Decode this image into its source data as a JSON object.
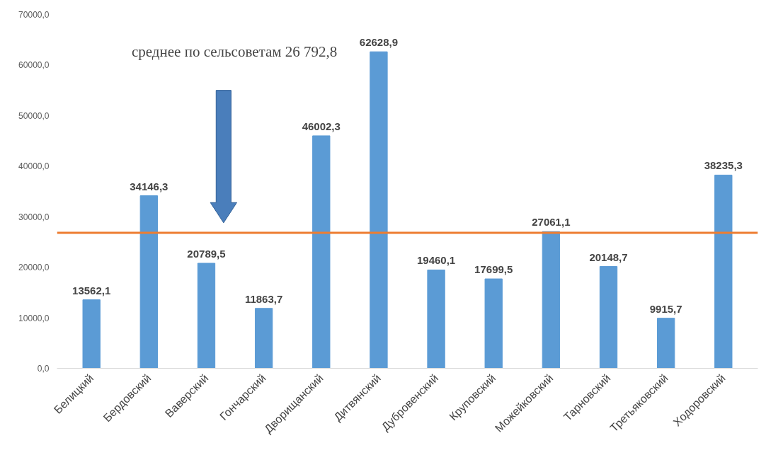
{
  "chart_data": {
    "type": "bar",
    "categories": [
      "Белицкий",
      "Бердовский",
      "Ваверский",
      "Гончарский",
      "Дворищанский",
      "Дитвянский",
      "Дубровенский",
      "Круповский",
      "Можейковский",
      "Тарновский",
      "Третьяковский",
      "Ходоровский"
    ],
    "values": [
      13562.1,
      34146.3,
      20789.5,
      11863.7,
      46002.3,
      62628.9,
      19460.1,
      17699.5,
      27061.1,
      20148.7,
      9915.7,
      38235.3
    ],
    "value_labels": [
      "13562,1",
      "34146,3",
      "20789,5",
      "11863,7",
      "46002,3",
      "62628,9",
      "19460,1",
      "17699,5",
      "27061,1",
      "20148,7",
      "9915,7",
      "38235,3"
    ],
    "color": "#5b9bd5",
    "ylim": [
      0,
      70000
    ],
    "yticks": [
      {
        "value": 0,
        "label": "0,0"
      },
      {
        "value": 10000,
        "label": "10000,0"
      },
      {
        "value": 20000,
        "label": "20000,0"
      },
      {
        "value": 30000,
        "label": "30000,0"
      },
      {
        "value": 40000,
        "label": "40000,0"
      },
      {
        "value": 50000,
        "label": "50000,0"
      },
      {
        "value": 60000,
        "label": "60000,0"
      },
      {
        "value": 70000,
        "label": "70000,0"
      }
    ],
    "ref_lines": [
      {
        "axis": "y",
        "value": 26792.8,
        "color": "#ed7d31"
      }
    ],
    "annotations": [
      "среднее по сельсоветам 26 792,8"
    ],
    "grid": false
  }
}
